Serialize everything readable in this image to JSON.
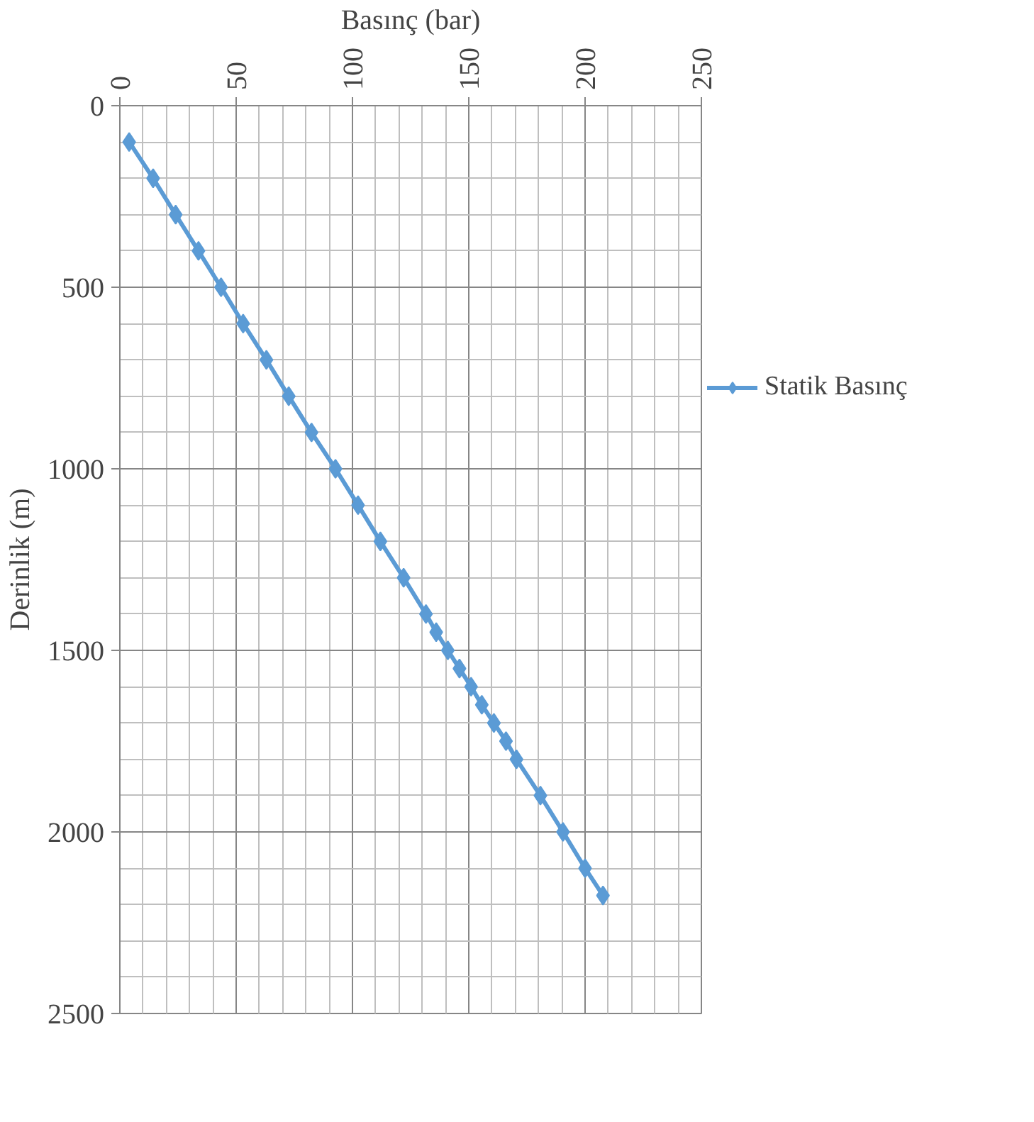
{
  "chart_data": {
    "type": "line",
    "xlabel": "Basınç (bar)",
    "ylabel": "Derinlik (m)",
    "xlim": [
      0,
      250
    ],
    "xticks": [
      0,
      50,
      100,
      150,
      200,
      250
    ],
    "ylim": [
      2500,
      0
    ],
    "yticks": [
      0,
      500,
      1000,
      1500,
      2000,
      2500
    ],
    "grid": true,
    "legend": "right",
    "marker": "diamond",
    "line_style": "solid",
    "series": [
      {
        "name": "Statik Basınç",
        "color": "#5b9bd5",
        "x": [
          4,
          14.3,
          24,
          33.8,
          43.5,
          53,
          63,
          72.6,
          82.4,
          92.7,
          102.4,
          112,
          122,
          131.6,
          136,
          141,
          146,
          151,
          155.6,
          160.8,
          166,
          170.5,
          180.8,
          190.5,
          200,
          207.7
        ],
        "values": [
          100,
          200,
          300,
          400,
          500,
          600,
          700,
          800,
          900,
          1000,
          1100,
          1200,
          1300,
          1400,
          1450,
          1500,
          1550,
          1600,
          1650,
          1700,
          1750,
          1800,
          1900,
          2000,
          2100,
          2175
        ]
      }
    ]
  }
}
